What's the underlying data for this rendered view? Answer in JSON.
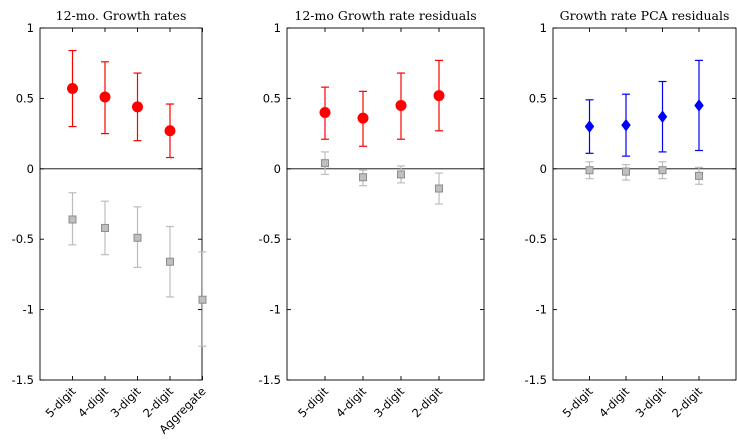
{
  "chart_data": [
    {
      "type": "errorbar",
      "title": "12-mo. Growth rates",
      "ylim": [
        -1.5,
        1
      ],
      "yticks": [
        1,
        0.5,
        0,
        -0.5,
        -1,
        -1.5
      ],
      "ytick_labels": [
        "1",
        "0.5",
        "0",
        "-0.5",
        "-1",
        "-1.5"
      ],
      "categories": [
        "5-digit",
        "4-digit",
        "3-digit",
        "2-digit",
        "Aggregate"
      ],
      "grid": false,
      "series": [
        {
          "marker": "circle",
          "color": "#ff0000",
          "points": [
            {
              "x": "5-digit",
              "y": 0.57,
              "lo": 0.3,
              "hi": 0.84
            },
            {
              "x": "4-digit",
              "y": 0.51,
              "lo": 0.25,
              "hi": 0.76
            },
            {
              "x": "3-digit",
              "y": 0.44,
              "lo": 0.2,
              "hi": 0.68
            },
            {
              "x": "2-digit",
              "y": 0.27,
              "lo": 0.08,
              "hi": 0.46
            }
          ]
        },
        {
          "marker": "square",
          "color": "#c8c8c8",
          "points": [
            {
              "x": "5-digit",
              "y": -0.36,
              "lo": -0.54,
              "hi": -0.17
            },
            {
              "x": "4-digit",
              "y": -0.42,
              "lo": -0.61,
              "hi": -0.23
            },
            {
              "x": "3-digit",
              "y": -0.49,
              "lo": -0.7,
              "hi": -0.27
            },
            {
              "x": "2-digit",
              "y": -0.66,
              "lo": -0.91,
              "hi": -0.41
            },
            {
              "x": "Aggregate",
              "y": -0.93,
              "lo": -1.26,
              "hi": -0.59
            }
          ]
        }
      ]
    },
    {
      "type": "errorbar",
      "title": "12-mo Growth rate residuals",
      "ylim": [
        -1.5,
        1
      ],
      "yticks": [
        1,
        0.5,
        0,
        -0.5,
        -1,
        -1.5
      ],
      "ytick_labels": [
        "1",
        "0.5",
        "0",
        "-0.5",
        "-1",
        "-1.5"
      ],
      "categories": [
        "5-digit",
        "4-digit",
        "3-digit",
        "2-digit"
      ],
      "grid": false,
      "series": [
        {
          "marker": "circle",
          "color": "#ff0000",
          "points": [
            {
              "x": "5-digit",
              "y": 0.4,
              "lo": 0.21,
              "hi": 0.58
            },
            {
              "x": "4-digit",
              "y": 0.36,
              "lo": 0.16,
              "hi": 0.55
            },
            {
              "x": "3-digit",
              "y": 0.45,
              "lo": 0.21,
              "hi": 0.68
            },
            {
              "x": "2-digit",
              "y": 0.52,
              "lo": 0.27,
              "hi": 0.77
            }
          ]
        },
        {
          "marker": "square",
          "color": "#c8c8c8",
          "points": [
            {
              "x": "5-digit",
              "y": 0.04,
              "lo": -0.04,
              "hi": 0.12
            },
            {
              "x": "4-digit",
              "y": -0.06,
              "lo": -0.12,
              "hi": -0.01
            },
            {
              "x": "3-digit",
              "y": -0.04,
              "lo": -0.1,
              "hi": 0.02
            },
            {
              "x": "2-digit",
              "y": -0.14,
              "lo": -0.25,
              "hi": -0.03
            }
          ]
        }
      ]
    },
    {
      "type": "errorbar",
      "title": "Growth rate PCA residuals",
      "ylim": [
        -1.5,
        1
      ],
      "yticks": [
        1,
        0.5,
        0,
        -0.5,
        -1,
        -1.5
      ],
      "ytick_labels": [
        "1",
        "0.5",
        "0",
        "-0.5",
        "-1",
        "-1.5"
      ],
      "categories": [
        "5-digit",
        "4-digit",
        "3-digit",
        "2-digit"
      ],
      "grid": false,
      "series": [
        {
          "marker": "diamond",
          "color": "#0000ff",
          "points": [
            {
              "x": "5-digit",
              "y": 0.3,
              "lo": 0.11,
              "hi": 0.49
            },
            {
              "x": "4-digit",
              "y": 0.31,
              "lo": 0.09,
              "hi": 0.53
            },
            {
              "x": "3-digit",
              "y": 0.37,
              "lo": 0.12,
              "hi": 0.62
            },
            {
              "x": "2-digit",
              "y": 0.45,
              "lo": 0.13,
              "hi": 0.77
            }
          ]
        },
        {
          "marker": "square",
          "color": "#c8c8c8",
          "points": [
            {
              "x": "5-digit",
              "y": -0.01,
              "lo": -0.07,
              "hi": 0.05
            },
            {
              "x": "4-digit",
              "y": -0.02,
              "lo": -0.08,
              "hi": 0.03
            },
            {
              "x": "3-digit",
              "y": -0.01,
              "lo": -0.07,
              "hi": 0.05
            },
            {
              "x": "2-digit",
              "y": -0.05,
              "lo": -0.11,
              "hi": 0.01
            }
          ]
        }
      ]
    }
  ]
}
